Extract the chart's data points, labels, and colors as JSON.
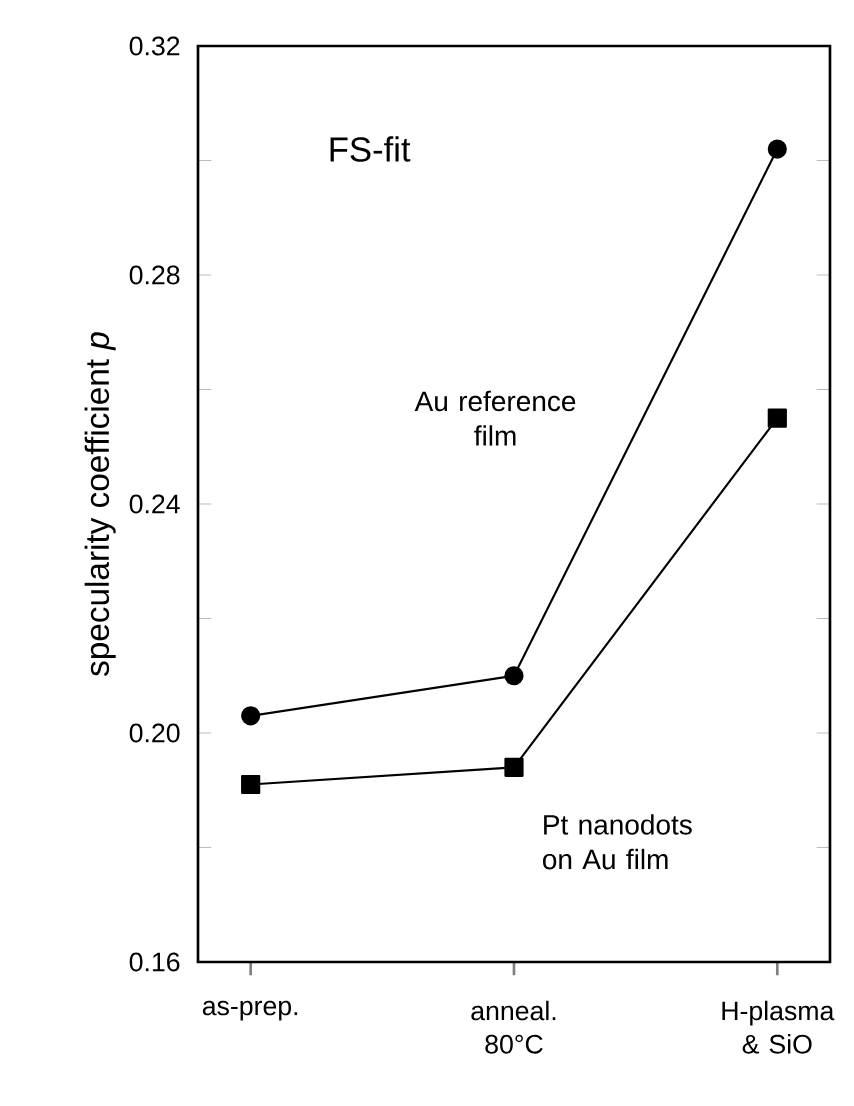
{
  "chart_data": {
    "type": "line",
    "categories": [
      "as-prep.",
      "anneal. 80°C",
      "H-plasma & SiO"
    ],
    "ylabel": "specularity coefficient *p*",
    "annotations": [
      "FS-fit"
    ],
    "series": [
      {
        "name": "Au reference film",
        "color": "#000000",
        "marker": "circle",
        "values": [
          0.203,
          0.21,
          0.302
        ]
      },
      {
        "name": "Pt nanodots on Au film",
        "color": "#000000",
        "marker": "square",
        "values": [
          0.191,
          0.194,
          0.255
        ]
      }
    ],
    "ylim": [
      0.16,
      0.32
    ],
    "yticks": [
      0.16,
      {
        "value": 0.18,
        "label": null
      },
      {
        "value": 0.2,
        "label": "0.20"
      },
      {
        "value": 0.22,
        "label": null
      },
      0.24,
      {
        "value": 0.26,
        "label": null
      },
      0.28,
      {
        "value": 0.3,
        "label": null
      },
      0.32
    ],
    "grid": false,
    "legend": false,
    "line_style": "solid"
  }
}
